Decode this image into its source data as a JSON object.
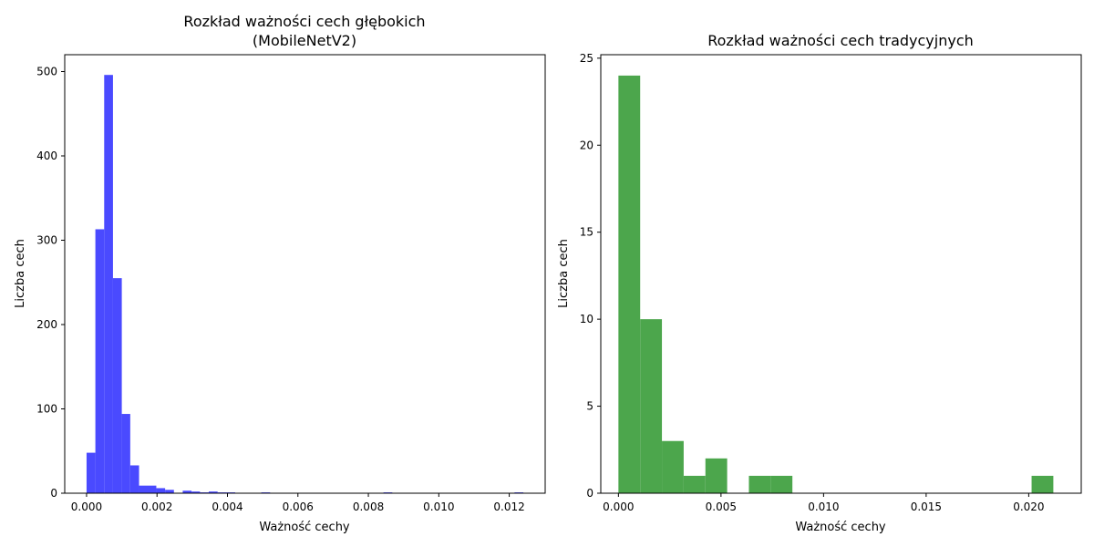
{
  "chart_data": [
    {
      "type": "bar",
      "title": "Rozkład ważności cech głębokich",
      "subtitle": "(MobileNetV2)",
      "xlabel": "Ważność cechy",
      "ylabel": "Liczba cech",
      "xlim": [
        -0.00062,
        0.01302
      ],
      "ylim": [
        0,
        520
      ],
      "xticks": [
        0.0,
        0.002,
        0.004,
        0.006,
        0.008,
        0.01,
        0.012
      ],
      "xtick_labels": [
        "0.000",
        "0.002",
        "0.004",
        "0.006",
        "0.008",
        "0.010",
        "0.012"
      ],
      "yticks": [
        0,
        100,
        200,
        300,
        400,
        500
      ],
      "ytick_labels": [
        "0",
        "100",
        "200",
        "300",
        "400",
        "500"
      ],
      "color": "#4a4aff",
      "bins": [
        {
          "x0": 0.0,
          "x1": 0.00025,
          "count": 48
        },
        {
          "x0": 0.00025,
          "x1": 0.0005,
          "count": 313
        },
        {
          "x0": 0.0005,
          "x1": 0.00075,
          "count": 496
        },
        {
          "x0": 0.00075,
          "x1": 0.001,
          "count": 255
        },
        {
          "x0": 0.001,
          "x1": 0.00124,
          "count": 94
        },
        {
          "x0": 0.00124,
          "x1": 0.00149,
          "count": 33
        },
        {
          "x0": 0.00149,
          "x1": 0.00198,
          "count": 9
        },
        {
          "x0": 0.00198,
          "x1": 0.00223,
          "count": 6
        },
        {
          "x0": 0.00223,
          "x1": 0.00248,
          "count": 4
        },
        {
          "x0": 0.00273,
          "x1": 0.00298,
          "count": 3
        },
        {
          "x0": 0.00298,
          "x1": 0.00322,
          "count": 2
        },
        {
          "x0": 0.00322,
          "x1": 0.00347,
          "count": 1
        },
        {
          "x0": 0.00347,
          "x1": 0.00372,
          "count": 2
        },
        {
          "x0": 0.00372,
          "x1": 0.00397,
          "count": 1
        },
        {
          "x0": 0.00397,
          "x1": 0.00422,
          "count": 1
        },
        {
          "x0": 0.00496,
          "x1": 0.00521,
          "count": 1
        },
        {
          "x0": 0.00843,
          "x1": 0.00868,
          "count": 1
        },
        {
          "x0": 0.01215,
          "x1": 0.0124,
          "count": 1
        }
      ]
    },
    {
      "type": "bar",
      "title": "Rozkład ważności cech tradycyjnych",
      "xlabel": "Ważność cechy",
      "ylabel": "Liczba cech",
      "xlim": [
        -0.00086,
        0.02256
      ],
      "ylim": [
        0,
        25.2
      ],
      "xticks": [
        0.0,
        0.005,
        0.01,
        0.015,
        0.02
      ],
      "xtick_labels": [
        "0.000",
        "0.005",
        "0.010",
        "0.015",
        "0.020"
      ],
      "yticks": [
        0,
        5,
        10,
        15,
        20,
        25
      ],
      "ytick_labels": [
        "0",
        "5",
        "10",
        "15",
        "20",
        "25"
      ],
      "color": "#4ca64c",
      "bins": [
        {
          "x0": 0.0,
          "x1": 0.00106,
          "count": 24
        },
        {
          "x0": 0.00106,
          "x1": 0.00212,
          "count": 10
        },
        {
          "x0": 0.00212,
          "x1": 0.00318,
          "count": 3
        },
        {
          "x0": 0.00318,
          "x1": 0.00424,
          "count": 1
        },
        {
          "x0": 0.00424,
          "x1": 0.0053,
          "count": 2
        },
        {
          "x0": 0.00636,
          "x1": 0.00742,
          "count": 1
        },
        {
          "x0": 0.00742,
          "x1": 0.00848,
          "count": 1
        },
        {
          "x0": 0.02014,
          "x1": 0.0212,
          "count": 1
        }
      ]
    }
  ]
}
